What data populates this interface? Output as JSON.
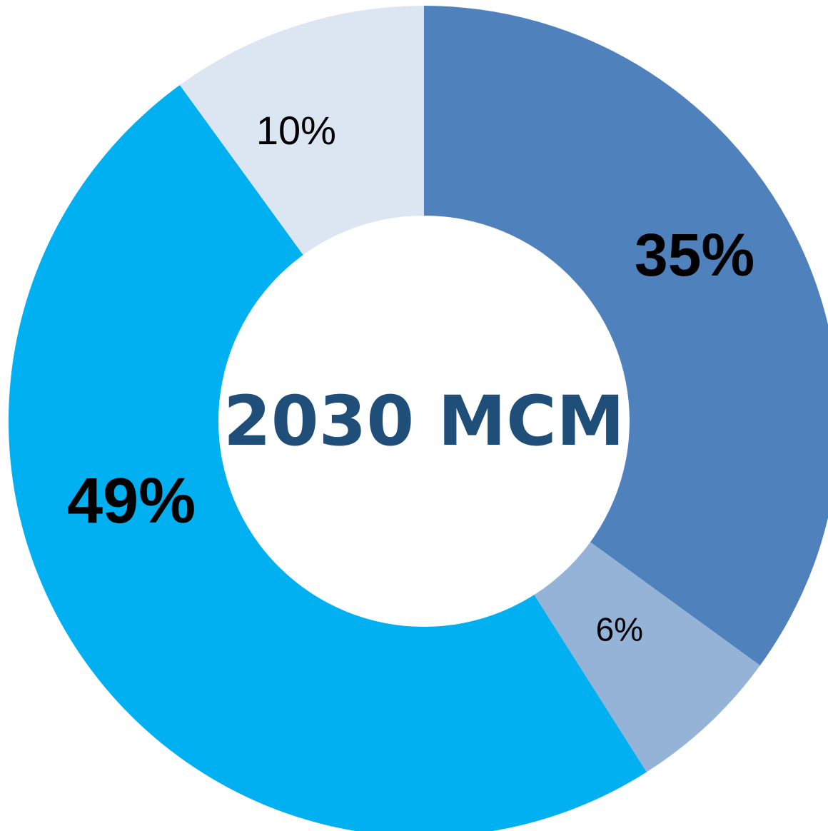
{
  "chart_data": {
    "type": "pie",
    "variant": "donut",
    "center_label": "2030 MCM",
    "slices": [
      {
        "value": 35,
        "label": "35%",
        "color": "#4f81bd",
        "emphasis": "large"
      },
      {
        "value": 6,
        "label": "6%",
        "color": "#95b3d7",
        "emphasis": "small"
      },
      {
        "value": 49,
        "label": "49%",
        "color": "#00b0f0",
        "emphasis": "large"
      },
      {
        "value": 10,
        "label": "10%",
        "color": "#dce6f2",
        "emphasis": "small"
      }
    ],
    "start_angle_deg": 0,
    "direction": "clockwise",
    "legend": "none",
    "center_label_color": "#1f4e79"
  }
}
